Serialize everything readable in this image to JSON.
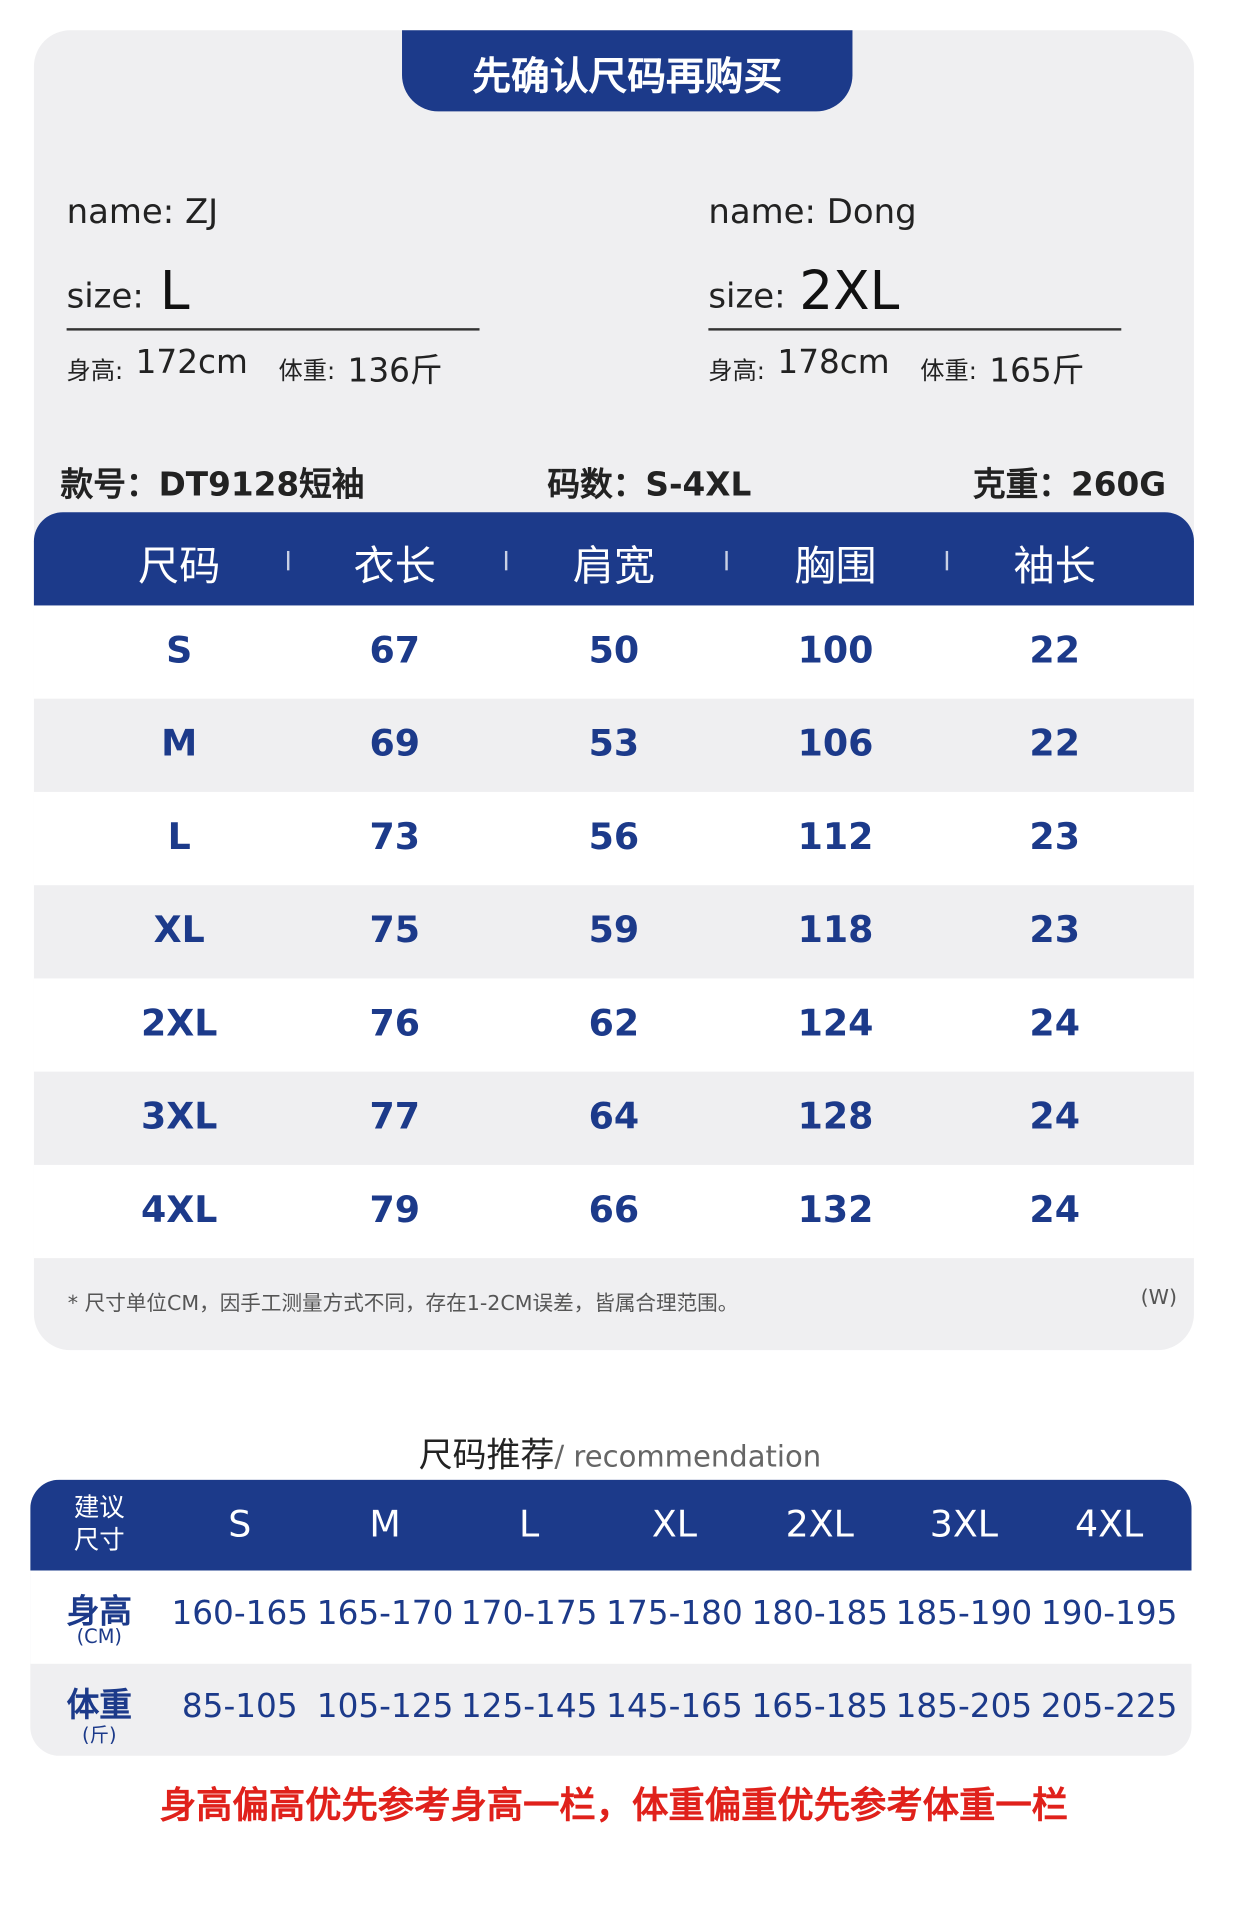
{
  "header": {
    "title": "先确认尺码再购买"
  },
  "models": [
    {
      "name": "name: ZJ",
      "size_label": "size:",
      "size": "L",
      "height_label": "身高:",
      "height": "172cm",
      "weight_label": "体重:",
      "weight": "136斤"
    },
    {
      "name": "name: Dong",
      "size_label": "size:",
      "size": "2XL",
      "height_label": "身高:",
      "height": "178cm",
      "weight_label": "体重:",
      "weight": "165斤"
    }
  ],
  "product": {
    "style": "款号：DT9128短袖",
    "sizes": "码数：S-4XL",
    "weight": "克重：260G"
  },
  "table": {
    "headers": [
      "尺码",
      "衣长",
      "肩宽",
      "胸围",
      "袖长"
    ],
    "rows": [
      [
        "S",
        67,
        50,
        100,
        22
      ],
      [
        "M",
        69,
        53,
        106,
        22
      ],
      [
        "L",
        73,
        56,
        112,
        23
      ],
      [
        "XL",
        75,
        59,
        118,
        23
      ],
      [
        "2XL",
        76,
        62,
        124,
        24
      ],
      [
        "3XL",
        77,
        64,
        128,
        24
      ],
      [
        "4XL",
        79,
        66,
        132,
        24
      ]
    ]
  },
  "note": {
    "text": "* 尺寸单位CM，因手工测量方式不同，存在1-2CM误差，皆属合理范围。",
    "tag": "(W)"
  },
  "recommendation": {
    "title": "尺码推荐",
    "subtitle": "/ recommendation",
    "corner": [
      "建议",
      "尺寸"
    ],
    "sizes": [
      "S",
      "M",
      "L",
      "XL",
      "2XL",
      "3XL",
      "4XL"
    ],
    "rows": [
      {
        "label": "身高",
        "unit": "(CM)",
        "values": [
          "160-165",
          "165-170",
          "170-175",
          "175-180",
          "180-185",
          "185-190",
          "190-195"
        ]
      },
      {
        "label": "体重",
        "unit": "(斤)",
        "values": [
          "85-105",
          "105-125",
          "125-145",
          "145-165",
          "165-185",
          "185-205",
          "205-225"
        ]
      }
    ]
  },
  "footer": {
    "text": "身高偏高优先参考身高一栏，体重偏重优先参考体重一栏"
  }
}
